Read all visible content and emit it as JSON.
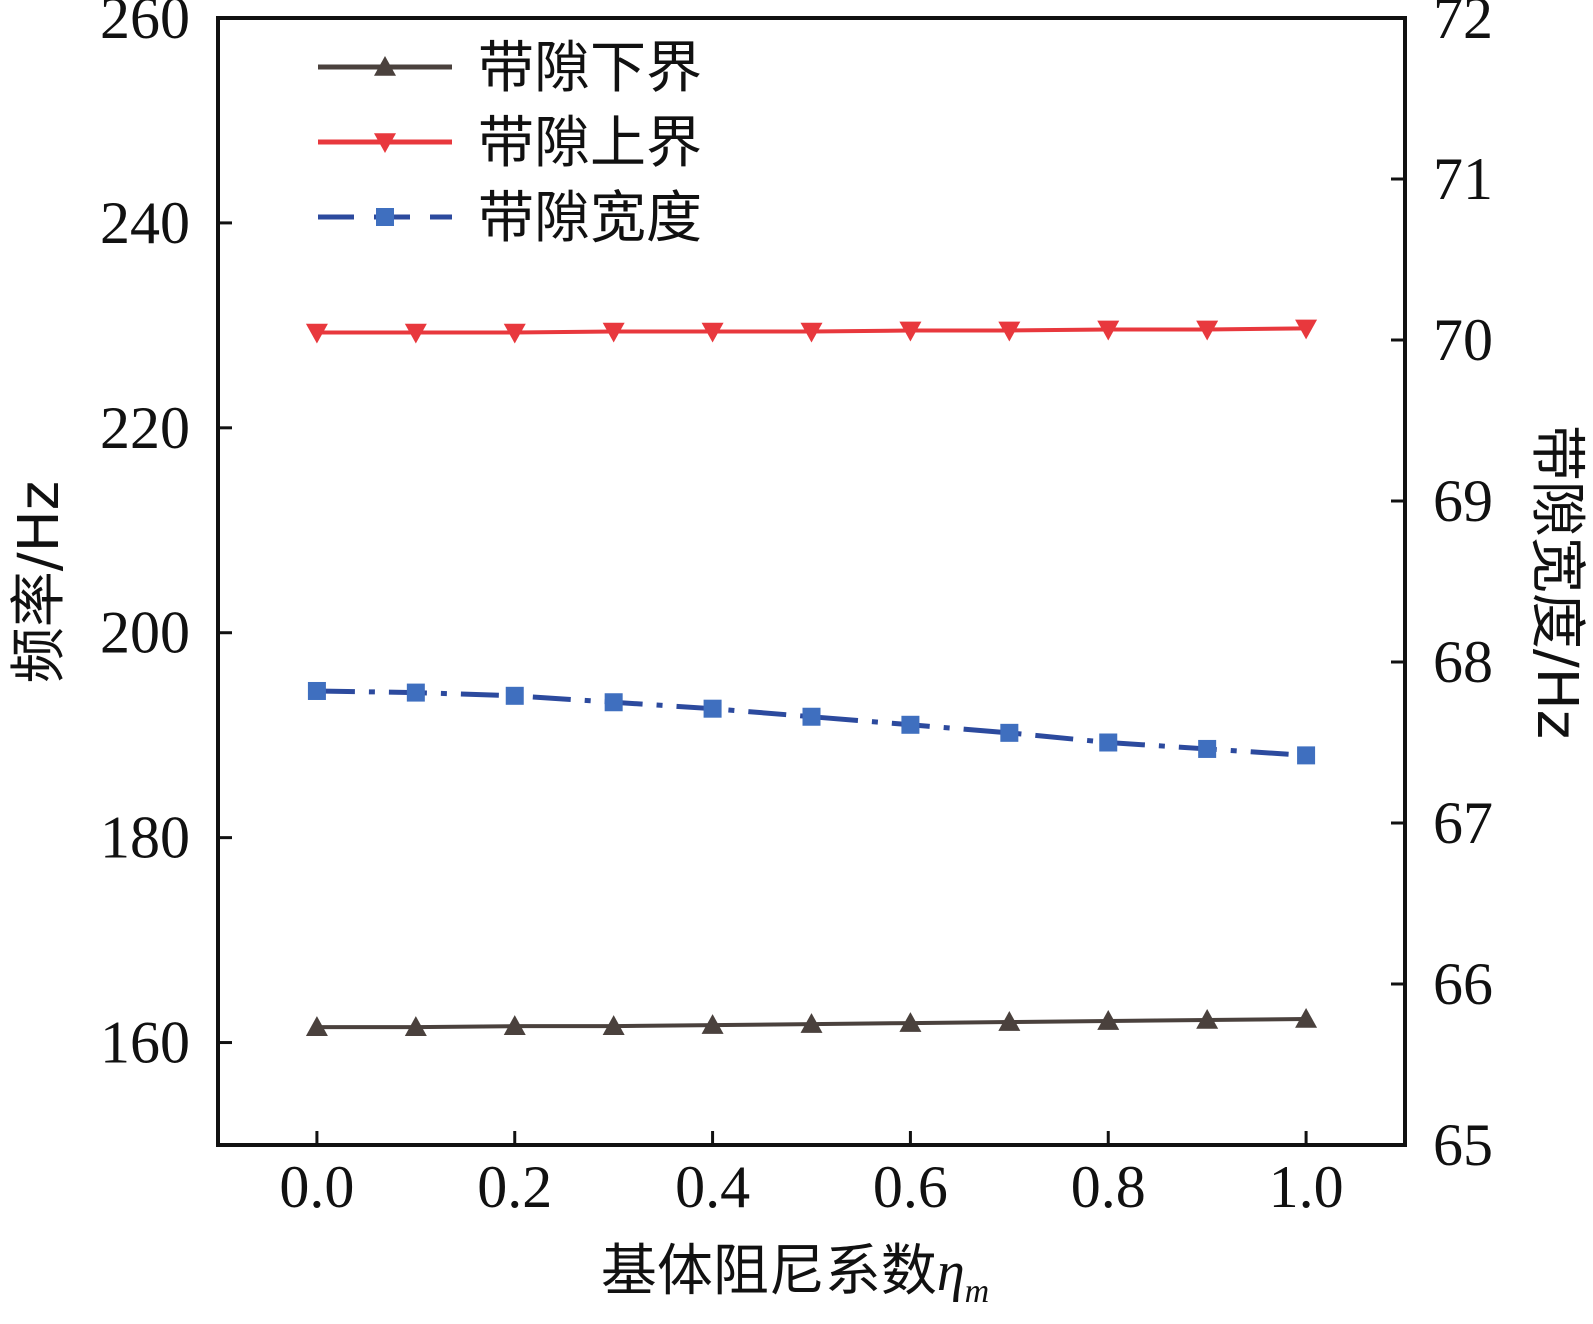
{
  "chart_data": {
    "type": "line",
    "xlabel": "基体阻尼系数",
    "xlabel_symbol": "η",
    "xlabel_subscript": "m",
    "ylabel_left": "频率/Hz",
    "ylabel_right": "带隙宽度/Hz",
    "xlim": [
      -0.1,
      1.1
    ],
    "ylim_left": [
      150,
      260
    ],
    "ylim_right": [
      65,
      72
    ],
    "x_ticks": [
      "0.0",
      "0.2",
      "0.4",
      "0.6",
      "0.8",
      "1.0"
    ],
    "x_tick_values": [
      0.0,
      0.2,
      0.4,
      0.6,
      0.8,
      1.0
    ],
    "y_ticks_left": [
      "160",
      "180",
      "200",
      "220",
      "240",
      "260"
    ],
    "y_tick_values_left": [
      160,
      180,
      200,
      220,
      240,
      260
    ],
    "y_ticks_right": [
      "65",
      "66",
      "67",
      "68",
      "69",
      "70",
      "71",
      "72"
    ],
    "y_tick_values_right": [
      65,
      66,
      67,
      68,
      69,
      70,
      71,
      72
    ],
    "grid": false,
    "legend_position": "top-left",
    "x": [
      0.0,
      0.1,
      0.2,
      0.3,
      0.4,
      0.5,
      0.6,
      0.7,
      0.8,
      0.9,
      1.0
    ],
    "series": [
      {
        "name": "带隙下界",
        "axis": "left",
        "color": "#4a413d",
        "marker": "triangle-up",
        "line": "solid",
        "values": [
          161.5,
          161.5,
          161.6,
          161.6,
          161.7,
          161.8,
          161.9,
          162.0,
          162.1,
          162.2,
          162.3
        ]
      },
      {
        "name": "带隙上界",
        "axis": "left",
        "color": "#e8383d",
        "marker": "triangle-down",
        "line": "solid",
        "values": [
          229.3,
          229.3,
          229.3,
          229.4,
          229.4,
          229.4,
          229.5,
          229.5,
          229.6,
          229.6,
          229.7
        ]
      },
      {
        "name": "带隙宽度",
        "axis": "right",
        "color": "#2c4a9e",
        "marker_color": "#3f6fbf",
        "marker": "square",
        "line": "dashdot",
        "values": [
          67.82,
          67.81,
          67.79,
          67.75,
          67.71,
          67.66,
          67.61,
          67.56,
          67.5,
          67.46,
          67.42
        ]
      }
    ]
  }
}
